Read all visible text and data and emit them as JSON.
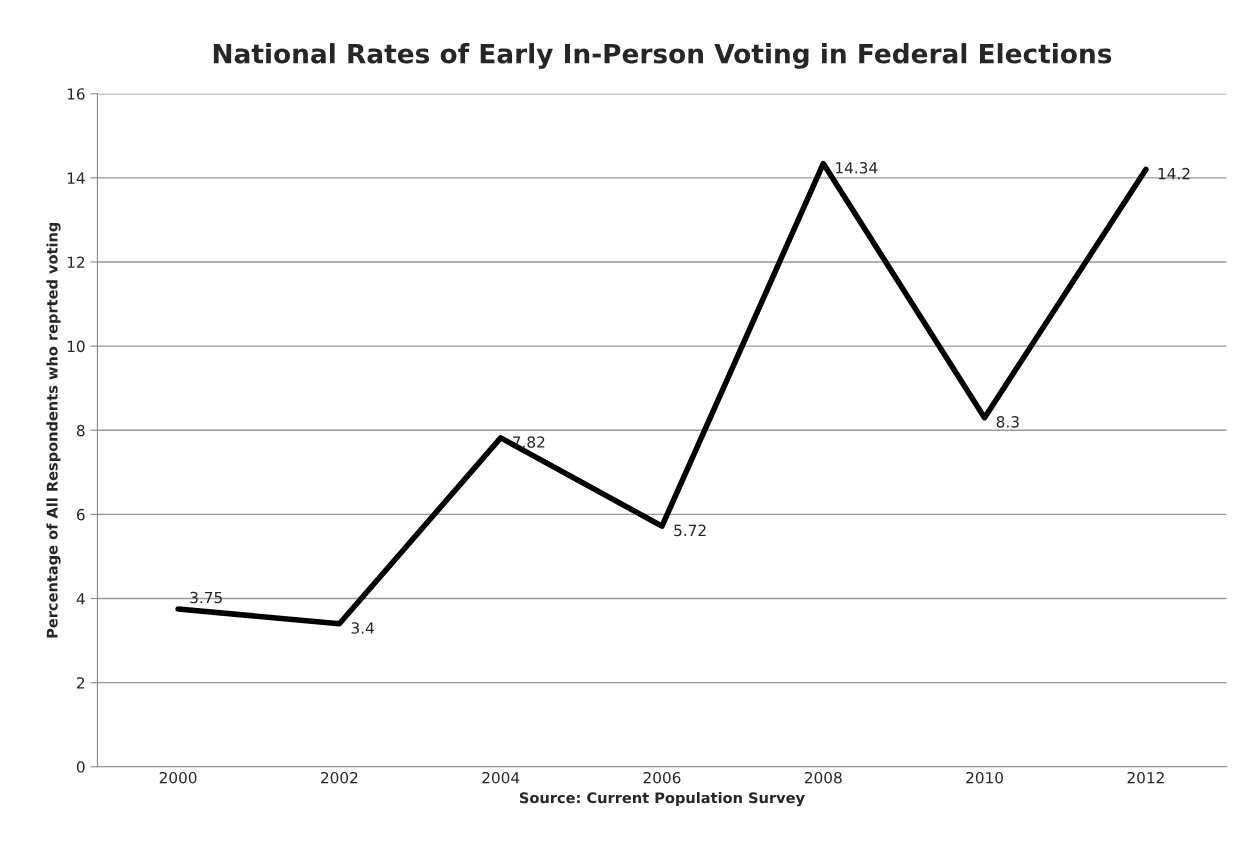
{
  "chart_data": {
    "type": "line",
    "title": "National Rates of Early In-Person Voting in Federal Elections",
    "xlabel": "Source: Current Population Survey",
    "ylabel": "Percentage of All Respondents who reprted voting",
    "categories": [
      "2000",
      "2002",
      "2004",
      "2006",
      "2008",
      "2010",
      "2012"
    ],
    "series": [
      {
        "color": "#000000",
        "values": [
          3.75,
          3.4,
          7.82,
          5.72,
          14.34,
          8.3,
          14.2
        ]
      }
    ],
    "ylim": [
      0,
      16
    ],
    "yticks": [
      0,
      2,
      4,
      6,
      8,
      10,
      12,
      14,
      16
    ],
    "grid": "y",
    "data_labels": true,
    "marker": "none",
    "line_style": "solid",
    "legend": false
  }
}
